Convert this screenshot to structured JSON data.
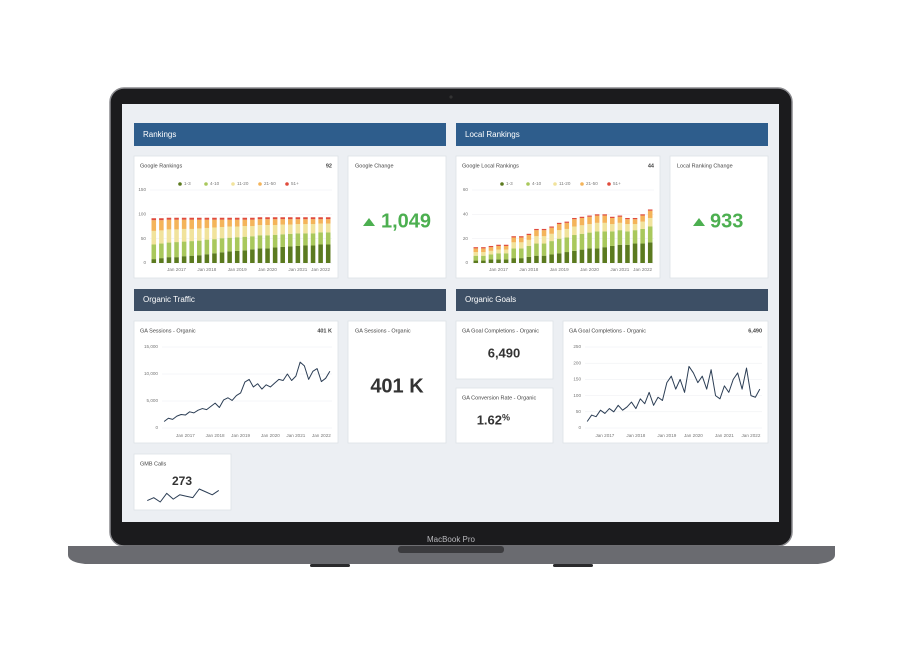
{
  "device": "MacBook Pro",
  "sections": [
    "Rankings",
    "Local Rankings",
    "Organic Traffic",
    "Organic Goals"
  ],
  "chart_data": [
    {
      "type": "stacked_bar",
      "title": "Google Rankings",
      "total": 92,
      "categories": [
        null,
        null,
        null,
        "Jan 2017",
        null,
        null,
        null,
        "Jan 2018",
        null,
        null,
        null,
        "Jan 2019",
        null,
        null,
        null,
        "Jan 2020",
        null,
        null,
        null,
        "Jan 2021",
        null,
        null,
        "Jan 2022",
        null
      ],
      "series": [
        {
          "name": "1-3",
          "color": "#5b7a1f",
          "values": [
            8,
            10,
            12,
            12,
            14,
            15,
            16,
            18,
            20,
            22,
            24,
            25,
            26,
            28,
            30,
            30,
            32,
            33,
            34,
            35,
            36,
            36,
            38,
            38
          ]
        },
        {
          "name": "4-10",
          "color": "#a9c85c",
          "values": [
            30,
            30,
            30,
            31,
            30,
            30,
            30,
            30,
            29,
            29,
            28,
            28,
            28,
            27,
            27,
            27,
            26,
            26,
            26,
            26,
            25,
            25,
            25,
            25
          ]
        },
        {
          "name": "11-20",
          "color": "#f1e39c",
          "values": [
            28,
            27,
            27,
            26,
            26,
            25,
            25,
            24,
            24,
            23,
            23,
            22,
            22,
            21,
            21,
            21,
            20,
            20,
            19,
            19,
            19,
            19,
            18,
            18
          ]
        },
        {
          "name": "21-50",
          "color": "#f4b45a",
          "values": [
            22,
            21,
            20,
            20,
            19,
            19,
            18,
            17,
            16,
            15,
            14,
            14,
            13,
            13,
            12,
            12,
            12,
            11,
            11,
            10,
            10,
            10,
            9,
            9
          ]
        },
        {
          "name": "51+",
          "color": "#e04b3c",
          "values": [
            4,
            4,
            4,
            4,
            4,
            4,
            4,
            4,
            4,
            4,
            4,
            4,
            4,
            4,
            4,
            4,
            4,
            4,
            4,
            4,
            4,
            4,
            4,
            4
          ]
        }
      ],
      "ylim": [
        0,
        150
      ],
      "yticks": [
        0,
        50,
        100,
        150
      ],
      "grid": true
    },
    {
      "type": "stacked_bar",
      "title": "Google Local Rankings",
      "total": 44,
      "categories": [
        null,
        null,
        null,
        "Jan 2017",
        null,
        null,
        null,
        "Jan 2018",
        null,
        null,
        null,
        "Jan 2019",
        null,
        null,
        null,
        "Jan 2020",
        null,
        null,
        null,
        "Jan 2021",
        null,
        null,
        "Jan 2022",
        null
      ],
      "series": [
        {
          "name": "1-3",
          "color": "#5b7a1f",
          "values": [
            2,
            2,
            3,
            3,
            3,
            4,
            4,
            5,
            6,
            6,
            7,
            8,
            9,
            10,
            11,
            12,
            12,
            13,
            14,
            15,
            15,
            16,
            16,
            17
          ]
        },
        {
          "name": "4-10",
          "color": "#a9c85c",
          "values": [
            4,
            4,
            4,
            5,
            5,
            8,
            8,
            9,
            10,
            10,
            11,
            12,
            12,
            13,
            13,
            13,
            14,
            13,
            12,
            12,
            11,
            11,
            12,
            13
          ]
        },
        {
          "name": "11-20",
          "color": "#f1e39c",
          "values": [
            3,
            3,
            3,
            3,
            3,
            5,
            5,
            5,
            6,
            6,
            6,
            7,
            7,
            7,
            7,
            7,
            7,
            7,
            6,
            6,
            6,
            5,
            6,
            7
          ]
        },
        {
          "name": "21-50",
          "color": "#f4b45a",
          "values": [
            3,
            3,
            3,
            3,
            3,
            4,
            4,
            4,
            5,
            5,
            5,
            5,
            5,
            6,
            6,
            6,
            6,
            6,
            5,
            5,
            4,
            4,
            5,
            6
          ]
        },
        {
          "name": "51+",
          "color": "#e04b3c",
          "values": [
            1,
            1,
            1,
            1,
            1,
            1,
            1,
            1,
            1,
            1,
            1,
            1,
            1,
            1,
            1,
            1,
            1,
            1,
            1,
            1,
            1,
            1,
            1,
            1
          ]
        }
      ],
      "ylim": [
        0,
        60
      ],
      "yticks": [
        0,
        20,
        40,
        60
      ],
      "grid": true
    },
    {
      "type": "line",
      "title": "GA Sessions - Organic",
      "total": "401 K",
      "color": "#2c3e55",
      "categories": [
        null,
        null,
        null,
        null,
        null,
        "Jan 2017",
        null,
        null,
        null,
        null,
        null,
        null,
        "Jan 2018",
        null,
        null,
        null,
        null,
        null,
        "Jan 2019",
        null,
        null,
        null,
        null,
        null,
        null,
        "Jan 2020",
        null,
        null,
        null,
        null,
        null,
        "Jan 2021",
        null,
        null,
        null,
        null,
        null,
        "Jan 2022",
        null,
        null
      ],
      "values": [
        1200,
        1800,
        1600,
        2200,
        2500,
        2400,
        3000,
        2800,
        3300,
        3600,
        3400,
        4000,
        4600,
        3800,
        5200,
        5600,
        5100,
        6000,
        6500,
        8500,
        9000,
        7600,
        8200,
        7200,
        8000,
        7600,
        8300,
        9000,
        8800,
        10000,
        8800,
        9600,
        12200,
        11500,
        9000,
        10500,
        11000,
        8600,
        9200,
        10500
      ],
      "ylim": [
        0,
        15000
      ],
      "yticks": [
        0,
        {
          "value": 5000,
          "label": "5,000"
        },
        {
          "value": 10000,
          "label": "10,000"
        },
        {
          "value": 15000,
          "label": "15,000"
        }
      ],
      "grid": true
    },
    {
      "type": "line",
      "title": "GA Goal Completions - Organic",
      "total": "6,490",
      "color": "#2c3e55",
      "categories": [
        null,
        null,
        null,
        null,
        "Jan 2017",
        null,
        null,
        null,
        null,
        null,
        null,
        "Jan 2018",
        null,
        null,
        null,
        null,
        null,
        null,
        "Jan 2019",
        null,
        null,
        null,
        null,
        null,
        "Jan 2020",
        null,
        null,
        null,
        null,
        null,
        null,
        "Jan 2021",
        null,
        null,
        null,
        null,
        null,
        "Jan 2022",
        null,
        null
      ],
      "values": [
        20,
        40,
        35,
        55,
        45,
        60,
        50,
        70,
        55,
        65,
        80,
        60,
        90,
        75,
        110,
        70,
        95,
        85,
        140,
        160,
        120,
        150,
        110,
        190,
        170,
        140,
        160,
        120,
        180,
        100,
        90,
        130,
        110,
        150,
        170,
        120,
        185,
        100,
        95,
        120
      ],
      "ylim": [
        0,
        250
      ],
      "yticks": [
        0,
        50,
        100,
        150,
        200,
        250
      ],
      "grid": true
    },
    {
      "type": "line",
      "title": "GMB Calls",
      "total": 273,
      "color": "#2c3e55",
      "values": [
        20,
        22,
        19,
        25,
        21,
        24,
        23,
        22,
        28,
        26,
        24,
        27
      ]
    }
  ],
  "kpis": [
    {
      "title": "Google Change",
      "value": "1,049"
    },
    {
      "title": "Local Ranking Change",
      "value": "933"
    },
    {
      "title": "GA Sessions - Organic",
      "value": "401 K"
    },
    {
      "title": "GA Goal Completions - Organic",
      "value": "6,490"
    },
    {
      "title": "GA Conversion Rate - Organic",
      "value": "1.62",
      "unit": "%"
    }
  ]
}
